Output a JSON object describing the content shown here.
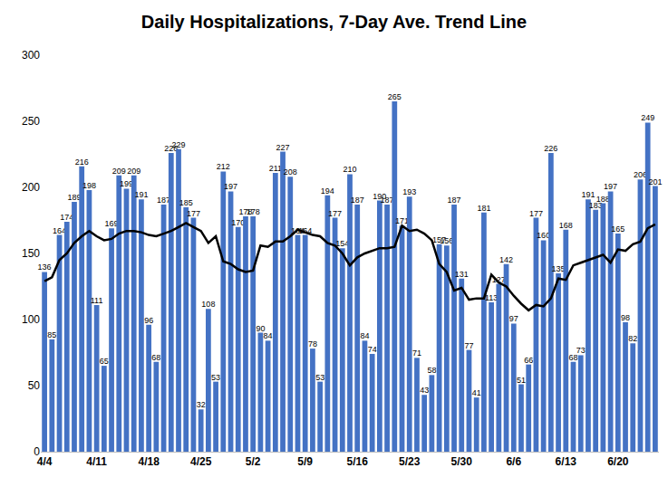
{
  "chart_data": {
    "type": "bar",
    "title": "Daily Hospitalizations, 7-Day Ave. Trend Line",
    "categories": [
      "4/4",
      null,
      null,
      null,
      null,
      null,
      null,
      "4/11",
      null,
      null,
      null,
      null,
      null,
      null,
      "4/18",
      null,
      null,
      null,
      null,
      null,
      null,
      "4/25",
      null,
      null,
      null,
      null,
      null,
      null,
      "5/2",
      null,
      null,
      null,
      null,
      null,
      null,
      "5/9",
      null,
      null,
      null,
      null,
      null,
      null,
      "5/16",
      null,
      null,
      null,
      null,
      null,
      null,
      "5/23",
      null,
      null,
      null,
      null,
      null,
      null,
      "5/30",
      null,
      null,
      null,
      null,
      null,
      null,
      "6/6",
      null,
      null,
      null,
      null,
      null,
      null,
      "6/13",
      null,
      null,
      null,
      null,
      null,
      null,
      "6/20",
      null,
      null,
      null,
      null,
      null
    ],
    "series": [
      {
        "type": "bar",
        "color": "#4472c4",
        "data_labels": true,
        "values": [
          136,
          85,
          164,
          174,
          189,
          216,
          198,
          111,
          65,
          169,
          209,
          199,
          209,
          191,
          96,
          68,
          187,
          226,
          229,
          185,
          177,
          32,
          108,
          53,
          212,
          197,
          170,
          178,
          178,
          90,
          84,
          211,
          227,
          208,
          164,
          164,
          78,
          53,
          194,
          177,
          154,
          210,
          187,
          84,
          74,
          190,
          187,
          265,
          171,
          193,
          71,
          43,
          58,
          157,
          156,
          187,
          131,
          77,
          41,
          181,
          113,
          127,
          142,
          97,
          51,
          66,
          177,
          160,
          226,
          135,
          168,
          68,
          73,
          191,
          183,
          188,
          197,
          165,
          98,
          82,
          206,
          249,
          201
        ]
      },
      {
        "type": "line",
        "color": "#000000",
        "values": [
          129,
          132,
          145,
          150,
          158,
          163,
          167,
          163,
          160,
          161,
          165,
          167,
          167,
          166,
          164,
          163,
          165,
          167,
          170,
          173,
          170,
          167,
          158,
          163,
          144,
          142,
          138,
          136,
          137,
          156,
          155,
          159,
          159,
          163,
          168,
          166,
          164,
          163,
          158,
          156,
          150,
          141,
          147,
          150,
          152,
          154,
          154,
          155,
          171,
          167,
          168,
          165,
          160,
          142,
          136,
          122,
          124,
          115,
          116,
          116,
          134,
          128,
          125,
          118,
          112,
          107,
          111,
          110,
          116,
          131,
          130,
          141,
          143,
          145,
          147,
          149,
          143,
          153,
          152,
          157,
          159,
          169,
          172
        ]
      }
    ],
    "ylim": [
      0,
      300
    ],
    "yticks": [
      0,
      50,
      100,
      150,
      200,
      250,
      300
    ],
    "grid": false
  }
}
